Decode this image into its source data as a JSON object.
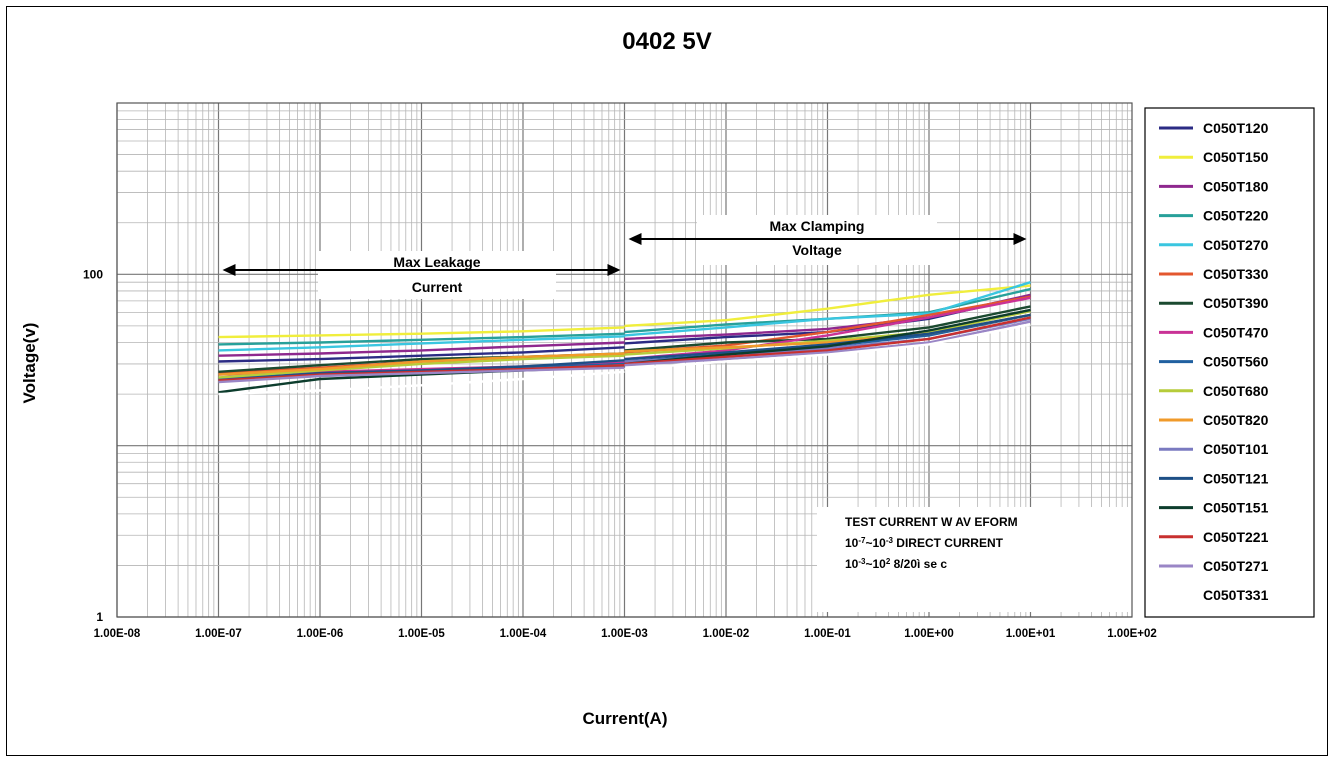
{
  "chart_data": {
    "type": "line",
    "title": "0402 5V",
    "xlabel": "Current(A)",
    "ylabel": "Voltage(v)",
    "xscale": "log",
    "yscale": "log",
    "xlim": [
      1e-08,
      100
    ],
    "ylim": [
      1,
      1000
    ],
    "grid": true,
    "legend_position": "right",
    "x_ticks": [
      {
        "value": 1e-08,
        "label": "1.00E-08"
      },
      {
        "value": 1e-07,
        "label": "1.00E-07"
      },
      {
        "value": 1e-06,
        "label": "1.00E-06"
      },
      {
        "value": 1e-05,
        "label": "1.00E-05"
      },
      {
        "value": 0.0001,
        "label": "1.00E-04"
      },
      {
        "value": 0.001,
        "label": "1.00E-03"
      },
      {
        "value": 0.01,
        "label": "1.00E-02"
      },
      {
        "value": 0.1,
        "label": "1.00E-01"
      },
      {
        "value": 1,
        "label": "1.00E+00"
      },
      {
        "value": 10,
        "label": "1.00E+01"
      },
      {
        "value": 100,
        "label": "1.00E+02"
      }
    ],
    "y_ticks": [
      {
        "value": 1,
        "label": "1"
      },
      {
        "value": 100,
        "label": "100"
      }
    ],
    "annotations": [
      {
        "text_lines": [
          "Max Leakage",
          "Current"
        ],
        "x_range": [
          1e-07,
          0.001
        ]
      },
      {
        "text_lines": [
          "Max Clamping",
          "Voltage"
        ],
        "x_range": [
          0.001,
          10
        ]
      }
    ],
    "note_lines": [
      {
        "text": "TEST  CURRENT W AV EFORM"
      },
      {
        "base1": "10",
        "sup1": "-7",
        "base2": "~10",
        "sup2": "-3",
        "rest": " DIRECT CURRENT"
      },
      {
        "base1": "10",
        "sup1": "-3",
        "base2": "~10",
        "sup2": "2",
        "rest": " 8/20ì se c"
      }
    ],
    "series": [
      {
        "name": "C050T120",
        "color": "#2b2b84",
        "segments": [
          {
            "x": [
              1e-07,
              1e-06,
              1e-05,
              0.0001,
              0.001
            ],
            "y": [
              31,
              32,
              33.5,
              35,
              37.5
            ]
          },
          {
            "x": [
              0.001,
              0.01,
              0.1,
              1,
              10
            ],
            "y": [
              39.5,
              43,
              46,
              55,
              75
            ]
          }
        ]
      },
      {
        "name": "C050T150",
        "color": "#f0ee3c",
        "segments": [
          {
            "x": [
              1e-07,
              1e-06,
              1e-05,
              0.0001,
              0.001
            ],
            "y": [
              43,
              44,
              45,
              46.5,
              49
            ]
          },
          {
            "x": [
              0.001,
              0.01,
              0.1,
              1,
              10
            ],
            "y": [
              50,
              54,
              63,
              76,
              86
            ]
          }
        ]
      },
      {
        "name": "C050T180",
        "color": "#8e288e",
        "segments": [
          {
            "x": [
              1e-07,
              1e-06,
              1e-05,
              0.0001,
              0.001
            ],
            "y": [
              33.5,
              34.5,
              36,
              38,
              40
            ]
          },
          {
            "x": [
              0.001,
              0.01,
              0.1,
              1,
              10
            ],
            "y": [
              42,
              44.5,
              48,
              56,
              76
            ]
          }
        ]
      },
      {
        "name": "C050T220",
        "color": "#27a09a",
        "segments": [
          {
            "x": [
              1e-07,
              1e-06,
              1e-05,
              0.0001,
              0.001
            ],
            "y": [
              39,
              40,
              41.5,
              43,
              45
            ]
          },
          {
            "x": [
              0.001,
              0.01,
              0.1,
              1,
              10
            ],
            "y": [
              46,
              51,
              55,
              60,
              82
            ]
          }
        ]
      },
      {
        "name": "C050T270",
        "color": "#3ac6e0",
        "segments": [
          {
            "x": [
              1e-07,
              1e-06,
              1e-05,
              0.0001,
              0.001
            ],
            "y": [
              36,
              37.5,
              39.5,
              41.5,
              43.5
            ]
          },
          {
            "x": [
              0.001,
              0.01,
              0.1,
              1,
              10
            ],
            "y": [
              44,
              49,
              55,
              59,
              90
            ]
          }
        ]
      },
      {
        "name": "C050T330",
        "color": "#e3572f",
        "segments": [
          {
            "x": [
              1e-07,
              1e-06,
              1e-05,
              0.0001,
              0.001
            ],
            "y": [
              26.5,
              28.5,
              31,
              32.5,
              34
            ]
          },
          {
            "x": [
              0.001,
              0.01,
              0.1,
              1,
              10
            ],
            "y": [
              35,
              38.5,
              46,
              58,
              74
            ]
          }
        ]
      },
      {
        "name": "C050T390",
        "color": "#1b4a30",
        "segments": [
          {
            "x": [
              1e-07,
              1e-06,
              1e-05,
              0.0001,
              0.001
            ],
            "y": [
              27,
              29.5,
              32,
              33,
              34.5
            ]
          },
          {
            "x": [
              0.001,
              0.01,
              0.1,
              1,
              10
            ],
            "y": [
              36,
              40,
              42,
              49,
              65
            ]
          }
        ]
      },
      {
        "name": "C050T470",
        "color": "#c93296",
        "segments": [
          {
            "x": [
              1e-07,
              1e-06,
              1e-05,
              0.0001,
              0.001
            ],
            "y": [
              26,
              27,
              28,
              29,
              30.5
            ]
          },
          {
            "x": [
              0.001,
              0.01,
              0.1,
              1,
              10
            ],
            "y": [
              32,
              36,
              44,
              56,
              73
            ]
          }
        ]
      },
      {
        "name": "C050T560",
        "color": "#2060a0",
        "segments": [
          {
            "x": [
              1e-07,
              1e-06,
              1e-05,
              0.0001,
              0.001
            ],
            "y": [
              24.5,
              26.5,
              27.5,
              28.5,
              30
            ]
          },
          {
            "x": [
              0.001,
              0.01,
              0.1,
              1,
              10
            ],
            "y": [
              31,
              34,
              38,
              44,
              58
            ]
          }
        ]
      },
      {
        "name": "C050T680",
        "color": "#b6cc3a",
        "segments": [
          {
            "x": [
              1e-07,
              1e-06,
              1e-05,
              0.0001,
              0.001
            ],
            "y": [
              25,
              27.5,
              30,
              32,
              33.5
            ]
          },
          {
            "x": [
              0.001,
              0.01,
              0.1,
              1,
              10
            ],
            "y": [
              34,
              37,
              41,
              46,
              61
            ]
          }
        ]
      },
      {
        "name": "C050T820",
        "color": "#f09a2a",
        "segments": [
          {
            "x": [
              1e-07,
              1e-06,
              1e-05,
              0.0001,
              0.001
            ],
            "y": [
              26,
              28,
              31,
              33,
              34.5
            ]
          },
          {
            "x": [
              0.001,
              0.01,
              0.1,
              1,
              10
            ],
            "y": [
              35.5,
              37.5,
              40,
              45,
              58
            ]
          }
        ]
      },
      {
        "name": "C050T101",
        "color": "#7a7ac0",
        "segments": [
          {
            "x": [
              1e-07,
              1e-06,
              1e-05,
              0.0001,
              0.001
            ],
            "y": [
              24,
              26,
              27,
              28,
              29.5
            ]
          },
          {
            "x": [
              0.001,
              0.01,
              0.1,
              1,
              10
            ],
            "y": [
              31,
              33,
              37,
              42,
              55
            ]
          }
        ]
      },
      {
        "name": "C050T121",
        "color": "#1d4f86",
        "segments": [
          {
            "x": [
              1e-07,
              1e-06,
              1e-05,
              0.0001,
              0.001
            ],
            "y": [
              24,
              26.5,
              27.5,
              29,
              31.5
            ]
          },
          {
            "x": [
              0.001,
              0.01,
              0.1,
              1,
              10
            ],
            "y": [
              32,
              35,
              39,
              45,
              58
            ]
          }
        ]
      },
      {
        "name": "C050T151",
        "color": "#0d3d2d",
        "segments": [
          {
            "x": [
              1e-07,
              1e-06,
              1e-05,
              0.0001,
              0.001
            ],
            "y": [
              20.5,
              24.5,
              26,
              27.5,
              29
            ]
          },
          {
            "x": [
              0.001,
              0.01,
              0.1,
              1,
              10
            ],
            "y": [
              30,
              34,
              38,
              47,
              62
            ]
          }
        ]
      },
      {
        "name": "C050T221",
        "color": "#c8302f",
        "segments": [
          {
            "x": [
              1e-07,
              1e-06,
              1e-05,
              0.0001,
              0.001
            ],
            "y": [
              24,
              26,
              27,
              28,
              29.5
            ]
          },
          {
            "x": [
              0.001,
              0.01,
              0.1,
              1,
              10
            ],
            "y": [
              30,
              33,
              36,
              42,
              56
            ]
          }
        ]
      },
      {
        "name": "C050T271",
        "color": "#9a86c6",
        "segments": [
          {
            "x": [
              1e-07,
              1e-06,
              1e-05,
              0.0001,
              0.001
            ],
            "y": [
              23.5,
              25.5,
              26.5,
              27.5,
              28.5
            ]
          },
          {
            "x": [
              0.001,
              0.01,
              0.1,
              1,
              10
            ],
            "y": [
              29.5,
              32,
              35,
              40,
              53
            ]
          }
        ]
      },
      {
        "name": "C050T331",
        "color": "#ffffff",
        "segments": [
          {
            "x": [
              1e-07,
              1e-06,
              1e-05,
              0.0001,
              0.001
            ],
            "y": [
              20,
              21,
              22.5,
              24.5,
              27
            ]
          },
          {
            "x": [
              0.001,
              0.01,
              0.1,
              1,
              10
            ],
            "y": [
              28,
              31,
              34,
              39,
              51
            ]
          }
        ]
      }
    ]
  }
}
